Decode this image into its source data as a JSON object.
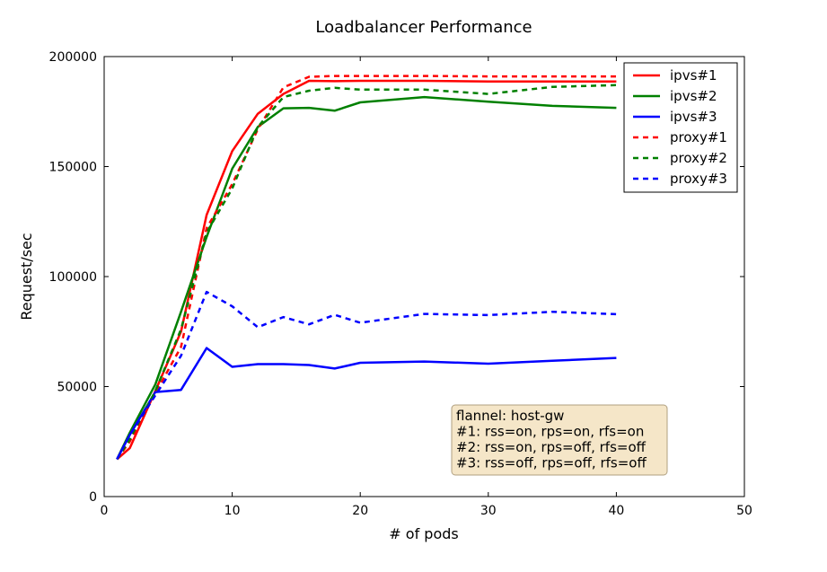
{
  "chart_data": {
    "type": "line",
    "title": "Loadbalancer Performance",
    "xlabel": "# of pods",
    "ylabel": "Request/sec",
    "xlim": [
      0,
      50
    ],
    "ylim": [
      0,
      200000
    ],
    "xticks": [
      0,
      10,
      20,
      30,
      40,
      50
    ],
    "xtick_labels": [
      "0",
      "10",
      "20",
      "30",
      "40",
      "50"
    ],
    "yticks": [
      0,
      50000,
      100000,
      150000,
      200000
    ],
    "ytick_labels": [
      "0",
      "50000",
      "100000",
      "150000",
      "200000"
    ],
    "grid": false,
    "legend_position": "top-right",
    "series": [
      {
        "name": "ipvs#1",
        "color": "#ff0000",
        "dash": "solid",
        "x": [
          1,
          2,
          4,
          6,
          8,
          10,
          12,
          14,
          16,
          18,
          20,
          25,
          30,
          35,
          40
        ],
        "y": [
          17000,
          22000,
          48000,
          75000,
          128000,
          157000,
          174000,
          183000,
          189000,
          188800,
          189000,
          189000,
          188700,
          188700,
          188700
        ]
      },
      {
        "name": "ipvs#2",
        "color": "#008000",
        "dash": "solid",
        "x": [
          1,
          2,
          4,
          6,
          8,
          10,
          12,
          14,
          16,
          18,
          20,
          25,
          30,
          35,
          40
        ],
        "y": [
          17000,
          29000,
          51000,
          84000,
          118000,
          149000,
          168000,
          176500,
          176700,
          175400,
          179200,
          181600,
          179500,
          177600,
          176700
        ]
      },
      {
        "name": "ipvs#3",
        "color": "#0000ff",
        "dash": "solid",
        "x": [
          1,
          2,
          4,
          6,
          8,
          10,
          12,
          14,
          16,
          18,
          20,
          25,
          30,
          35,
          40
        ],
        "y": [
          17000,
          28000,
          47500,
          48500,
          67500,
          59000,
          60200,
          60200,
          59800,
          58200,
          60800,
          61400,
          60400,
          61700,
          63000
        ]
      },
      {
        "name": "proxy#1",
        "color": "#ff0000",
        "dash": "dashed",
        "x": [
          1,
          2,
          4,
          6,
          8,
          10,
          12,
          14,
          16,
          18,
          20,
          25,
          30,
          35,
          40
        ],
        "y": [
          17000,
          25000,
          47000,
          68000,
          122000,
          142000,
          167000,
          186000,
          190800,
          191200,
          191200,
          191200,
          191000,
          191000,
          191000
        ]
      },
      {
        "name": "proxy#2",
        "color": "#008000",
        "dash": "dashed",
        "x": [
          1,
          2,
          4,
          6,
          8,
          10,
          12,
          14,
          16,
          18,
          20,
          25,
          30,
          35,
          40
        ],
        "y": [
          17000,
          26000,
          48000,
          76000,
          120000,
          140000,
          168000,
          181600,
          184500,
          185800,
          185000,
          185000,
          183000,
          186200,
          187000
        ]
      },
      {
        "name": "proxy#3",
        "color": "#0000ff",
        "dash": "dashed",
        "x": [
          1,
          2,
          4,
          6,
          8,
          10,
          12,
          14,
          16,
          18,
          20,
          25,
          30,
          35,
          40
        ],
        "y": [
          17000,
          28000,
          46000,
          64000,
          93000,
          86500,
          77000,
          81600,
          78300,
          82600,
          79000,
          83000,
          82500,
          84000,
          82900
        ]
      }
    ],
    "annotation": {
      "lines": [
        "flannel: host-gw",
        "#1: rss=on, rps=on, rfs=on",
        "#2: rss=on, rps=off, rfs=off",
        "#3: rss=off, rps=off, rfs=off"
      ],
      "background": "#f5e6c8",
      "border": "#b0a080"
    }
  }
}
